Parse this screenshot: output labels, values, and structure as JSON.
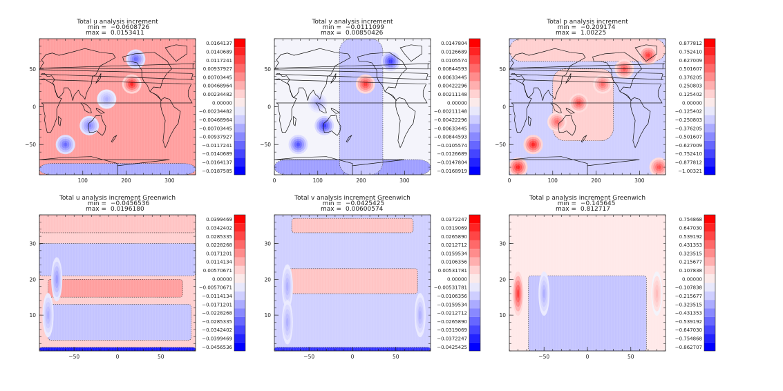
{
  "chart_data": [
    {
      "type": "heatmap",
      "title": "Total u analysis increment",
      "min_label": "min =",
      "min_value": "−0.0608726",
      "max_label": "max =",
      "max_value": "0.0153411",
      "kind": "map",
      "xlim": [
        0,
        360
      ],
      "ylim": [
        -90,
        90
      ],
      "xticks": [
        100,
        200,
        300
      ],
      "yticks": [
        -50,
        0,
        50
      ],
      "colorbar": [
        "0.0164137",
        "0.0140689",
        "0.0117241",
        "0.00937927",
        "0.00703445",
        "0.00468964",
        "0.00234482",
        "0.00000",
        "-0.00234482",
        "-0.00468964",
        "-0.00703445",
        "-0.00937927",
        "-0.0117241",
        "-0.0140689",
        "-0.0164137",
        "-0.0187585"
      ],
      "background_level": 0.35,
      "features": [
        {
          "x": 222,
          "y": 63,
          "amp": -0.6
        },
        {
          "x": 213,
          "y": 30,
          "amp": 0.9
        },
        {
          "x": 115,
          "y": -25,
          "amp": -0.5
        },
        {
          "x": 60,
          "y": -50,
          "amp": -0.6
        },
        {
          "x": 155,
          "y": 10,
          "amp": -0.3
        }
      ],
      "bands": [
        {
          "y0": -90,
          "y1": -75,
          "level": -0.3
        }
      ]
    },
    {
      "type": "heatmap",
      "title": "Total v analysis increment",
      "min_label": "min =",
      "min_value": "−0.0111099",
      "max_label": "max =",
      "max_value": "0.00850426",
      "kind": "map",
      "xlim": [
        0,
        360
      ],
      "ylim": [
        -90,
        90
      ],
      "xticks": [
        0,
        100,
        200,
        300
      ],
      "yticks": [
        -50,
        0,
        50
      ],
      "colorbar": [
        "0.0147804",
        "0.0126689",
        "0.0105574",
        "0.00844593",
        "0.00633445",
        "0.00422296",
        "0.00211148",
        "0.00000",
        "-0.00211148",
        "-0.00422296",
        "-0.00633445",
        "-0.00844593",
        "-0.0105574",
        "-0.0126689",
        "-0.0147804",
        "-0.0168919"
      ],
      "background_level": 0.0,
      "features": [
        {
          "x": 268,
          "y": 60,
          "amp": -0.8
        },
        {
          "x": 210,
          "y": 30,
          "amp": 0.8
        },
        {
          "x": 115,
          "y": -25,
          "amp": -0.8
        },
        {
          "x": 55,
          "y": -50,
          "amp": -0.7
        },
        {
          "x": 100,
          "y": 5,
          "amp": -0.3
        }
      ],
      "bands": [
        {
          "y0": -90,
          "y1": -70,
          "level": -0.35
        },
        {
          "x0": 150,
          "x1": 250,
          "y0": -90,
          "y1": 90,
          "level": -0.2
        }
      ]
    },
    {
      "type": "heatmap",
      "title": "Total p analysis increment",
      "min_label": "min =",
      "min_value": "−0.209174",
      "max_label": "max =",
      "max_value": "1.00225",
      "kind": "map",
      "xlim": [
        0,
        360
      ],
      "ylim": [
        -90,
        90
      ],
      "xticks": [
        0,
        100,
        200,
        300
      ],
      "yticks": [
        -50,
        0,
        50
      ],
      "colorbar": [
        "0.877812",
        "0.752410",
        "0.627009",
        "0.501607",
        "0.376205",
        "0.250803",
        "0.125402",
        "0.00000",
        "-0.125402",
        "-0.250803",
        "-0.376205",
        "-0.501607",
        "-0.627009",
        "-0.752410",
        "-0.877812",
        "-1.00321"
      ],
      "background_level": -0.15,
      "features": [
        {
          "x": 160,
          "y": 5,
          "amp": 0.7
        },
        {
          "x": 215,
          "y": 30,
          "amp": 0.6
        },
        {
          "x": 265,
          "y": 50,
          "amp": 0.7
        },
        {
          "x": 110,
          "y": -20,
          "amp": 0.6
        },
        {
          "x": 55,
          "y": -50,
          "amp": 0.9
        },
        {
          "x": 320,
          "y": 68,
          "amp": 0.8
        },
        {
          "x": 20,
          "y": -80,
          "amp": 0.9
        },
        {
          "x": 345,
          "y": -80,
          "amp": 0.7
        }
      ],
      "bands": [
        {
          "x0": 100,
          "x1": 240,
          "y0": -45,
          "y1": 50,
          "level": 0.15
        },
        {
          "y0": 60,
          "y1": 90,
          "level": 0.15
        }
      ]
    },
    {
      "type": "heatmap",
      "title": "Total u analysis increment Greenwich",
      "min_label": "min =",
      "min_value": "−0.0456536",
      "max_label": "max =",
      "max_value": "0.0196180",
      "kind": "section",
      "xlim": [
        -90,
        90
      ],
      "ylim": [
        0,
        38
      ],
      "xticks": [
        -50,
        0,
        50
      ],
      "yticks": [
        10,
        20,
        30
      ],
      "colorbar": [
        "0.0399469",
        "0.0342402",
        "0.0285335",
        "0.0228268",
        "0.0171201",
        "0.0114134",
        "0.00570671",
        "0.00000",
        "-0.00570671",
        "-0.0114134",
        "-0.0171201",
        "-0.0228268",
        "-0.0285335",
        "-0.0342402",
        "-0.0399469",
        "-0.0456536"
      ],
      "background_level": 0.15,
      "features": [
        {
          "x": -70,
          "y": 20,
          "amp": -0.4
        },
        {
          "x": -80,
          "y": 10,
          "amp": -0.3
        }
      ],
      "bands": [
        {
          "y0": 33,
          "y1": 38,
          "level": 0.2
        },
        {
          "y0": 21,
          "y1": 30,
          "level": -0.2
        },
        {
          "x0": -80,
          "x1": 75,
          "y0": 15,
          "y1": 20,
          "level": 0.35
        },
        {
          "x0": -80,
          "x1": 85,
          "y0": 3,
          "y1": 13,
          "level": -0.2
        },
        {
          "y0": 0,
          "y1": 1,
          "level": -0.9
        }
      ]
    },
    {
      "type": "heatmap",
      "title": "Total v analysis increment Greenwich",
      "min_label": "min =",
      "min_value": "−0.0425425",
      "max_label": "max =",
      "max_value": "0.00600574",
      "kind": "section",
      "xlim": [
        -90,
        90
      ],
      "ylim": [
        0,
        38
      ],
      "xticks": [
        -50,
        0,
        50
      ],
      "yticks": [
        10,
        20,
        30
      ],
      "colorbar": [
        "0.0372247",
        "0.0319069",
        "0.0265890",
        "0.0212712",
        "0.0159534",
        "0.0106356",
        "0.00531781",
        "0.00000",
        "-0.00531781",
        "-0.0106356",
        "-0.0159534",
        "-0.0212712",
        "-0.0265890",
        "-0.0319069",
        "-0.0372247",
        "-0.0425425"
      ],
      "background_level": -0.15,
      "features": [
        {
          "x": -75,
          "y": 18,
          "amp": -0.3
        },
        {
          "x": -75,
          "y": 8,
          "amp": -0.3
        },
        {
          "x": 78,
          "y": 10,
          "amp": -0.3
        }
      ],
      "bands": [
        {
          "x0": -70,
          "x1": 70,
          "y0": 33,
          "y1": 37,
          "level": 0.2
        },
        {
          "x0": -75,
          "x1": 75,
          "y0": 16,
          "y1": 23,
          "level": 0.2
        },
        {
          "y0": 0,
          "y1": 1,
          "level": -0.8
        }
      ]
    },
    {
      "type": "heatmap",
      "title": "Total p analysis increment Greenwich",
      "min_label": "min =",
      "min_value": "−0.145645",
      "max_label": "max =",
      "max_value": "0.812717",
      "kind": "section",
      "xlim": [
        -90,
        90
      ],
      "ylim": [
        0,
        38
      ],
      "xticks": [
        -50,
        0,
        50
      ],
      "yticks": [
        10,
        20,
        30
      ],
      "colorbar": [
        "0.754868",
        "0.647030",
        "0.539192",
        "0.431353",
        "0.323515",
        "0.215677",
        "0.107838",
        "0.00000",
        "-0.107838",
        "-0.215677",
        "-0.323515",
        "-0.431353",
        "-0.539192",
        "-0.647030",
        "-0.754868",
        "-0.862707"
      ],
      "background_level": 0.05,
      "features": [
        {
          "x": -80,
          "y": 16,
          "amp": 0.8
        },
        {
          "x": 80,
          "y": 16,
          "amp": 0.25
        },
        {
          "x": -50,
          "y": 16,
          "amp": -0.3
        }
      ],
      "bands": [
        {
          "x0": -68,
          "x1": 68,
          "y0": 0,
          "y1": 21,
          "level": -0.2
        }
      ]
    }
  ]
}
